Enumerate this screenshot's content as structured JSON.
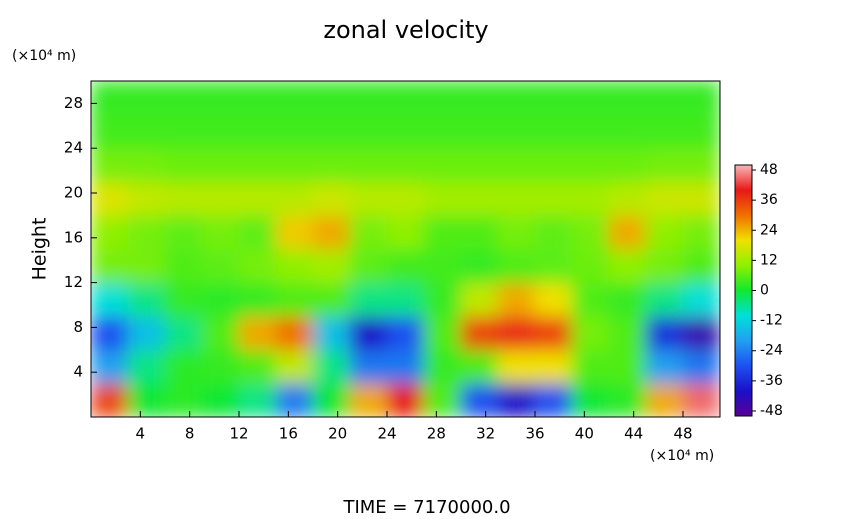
{
  "chart_data": {
    "type": "heatmap",
    "title": "zonal velocity",
    "ylabel": "Height",
    "x_unit": "(×10⁴ m)",
    "y_unit": "(×10⁴ m)",
    "footer": "TIME = 7170000.0",
    "xlim": [
      0,
      51
    ],
    "ylim": [
      0,
      30
    ],
    "xticks": [
      4,
      8,
      12,
      16,
      20,
      24,
      28,
      32,
      36,
      40,
      44,
      48
    ],
    "yticks": [
      4,
      8,
      12,
      16,
      20,
      24,
      28
    ],
    "x": [
      1.5,
      4.5,
      7.5,
      10.5,
      13.5,
      16.5,
      19.5,
      22.5,
      25.5,
      28.5,
      31.5,
      34.5,
      37.5,
      40.5,
      43.5,
      46.5,
      49.5
    ],
    "y": [
      1.5,
      4.5,
      7.5,
      10.5,
      13.5,
      16.5,
      19.5,
      22.5,
      25.5,
      28.5
    ],
    "z": [
      [
        35,
        0,
        2,
        0,
        -5,
        -25,
        0,
        25,
        40,
        5,
        -30,
        -40,
        -30,
        0,
        2,
        25,
        45
      ],
      [
        -20,
        -5,
        2,
        3,
        5,
        15,
        -5,
        -25,
        -25,
        3,
        5,
        20,
        20,
        5,
        5,
        -20,
        -25
      ],
      [
        -30,
        -15,
        -5,
        5,
        25,
        30,
        -15,
        -40,
        -30,
        5,
        35,
        38,
        35,
        8,
        5,
        -35,
        -45
      ],
      [
        -10,
        -5,
        3,
        2,
        3,
        5,
        5,
        -5,
        -5,
        3,
        15,
        25,
        20,
        5,
        3,
        -5,
        -10
      ],
      [
        8,
        8,
        5,
        6,
        8,
        10,
        12,
        6,
        4,
        4,
        3,
        5,
        6,
        7,
        10,
        8,
        5
      ],
      [
        10,
        8,
        6,
        8,
        6,
        22,
        25,
        8,
        10,
        5,
        5,
        8,
        6,
        8,
        25,
        10,
        8
      ],
      [
        18,
        15,
        14,
        14,
        14,
        14,
        16,
        14,
        14,
        12,
        12,
        12,
        12,
        12,
        14,
        16,
        16
      ],
      [
        8,
        8,
        7,
        7,
        7,
        7,
        7,
        7,
        7,
        7,
        7,
        7,
        7,
        7,
        7,
        8,
        8
      ],
      [
        4,
        4,
        4,
        4,
        4,
        4,
        4,
        4,
        4,
        4,
        4,
        4,
        4,
        4,
        4,
        4,
        4
      ],
      [
        3,
        3,
        3,
        3,
        3,
        3,
        3,
        3,
        3,
        3,
        3,
        3,
        3,
        3,
        3,
        3,
        3
      ]
    ],
    "zlim": [
      -50,
      50
    ],
    "zticks": [
      48,
      36,
      24,
      12,
      0,
      -12,
      -24,
      -36,
      -48
    ],
    "colormap": [
      "#5a0096",
      "#1a10c8",
      "#1e50f0",
      "#20a0f0",
      "#00e0d8",
      "#10e830",
      "#90f000",
      "#f0e000",
      "#f07000",
      "#e81818",
      "#f8b8b8"
    ]
  }
}
